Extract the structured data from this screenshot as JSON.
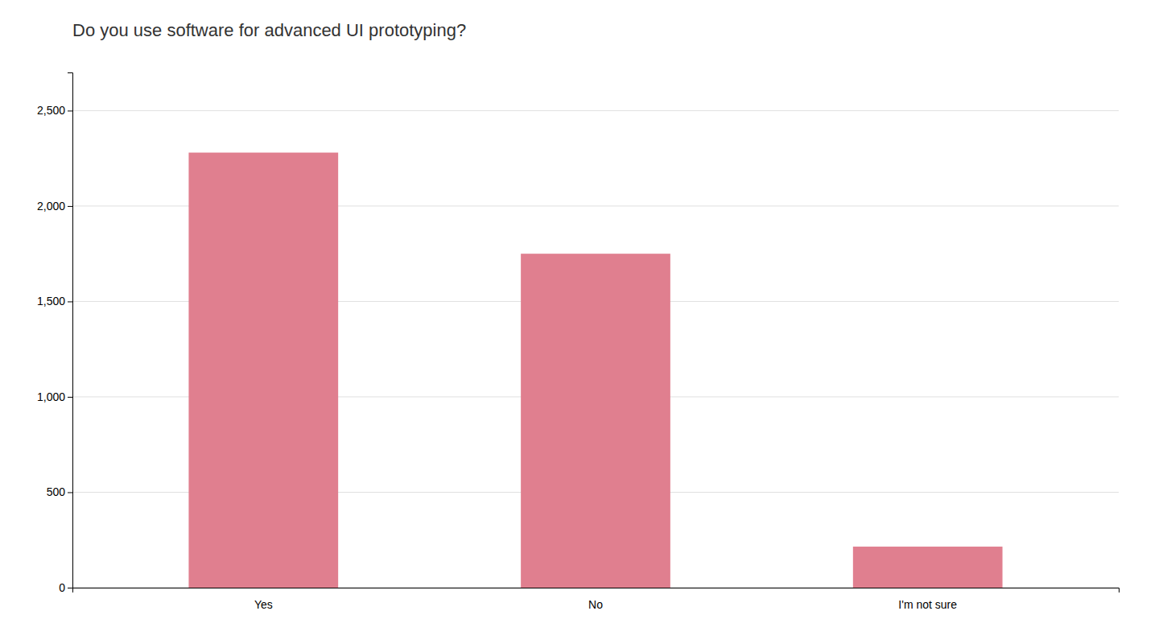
{
  "chart_data": {
    "type": "bar",
    "title": "Do you use software for advanced UI prototyping?",
    "categories": [
      "Yes",
      "No",
      "I'm not sure"
    ],
    "values": [
      2280,
      1750,
      215
    ],
    "color": "#e07f8f",
    "ylim": [
      0,
      2700
    ],
    "yticks": [
      0,
      500,
      {
        "value": 1000,
        "label": "1,000"
      },
      {
        "value": 1500,
        "label": "1,500"
      },
      {
        "value": 2000,
        "label": "2,000"
      },
      {
        "value": 2500,
        "label": "2,500"
      }
    ],
    "grid": true
  }
}
